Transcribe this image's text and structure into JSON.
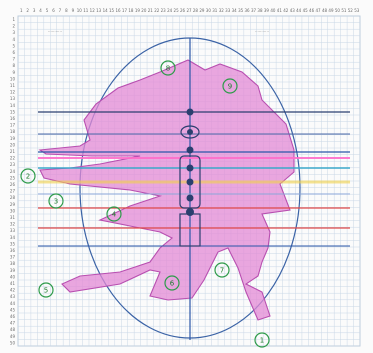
{
  "header": {
    "left_note": "...........",
    "right_note": "..........."
  },
  "column_labels": [
    "1",
    "2",
    "3",
    "4",
    "5",
    "6",
    "7",
    "8",
    "9",
    "10",
    "11",
    "12",
    "13",
    "14",
    "15",
    "16",
    "17",
    "18",
    "19",
    "20",
    "21",
    "22",
    "23",
    "24",
    "25",
    "26",
    "27",
    "28",
    "29",
    "30",
    "31",
    "32",
    "33",
    "34",
    "35",
    "36",
    "37",
    "38",
    "39",
    "40",
    "41",
    "42",
    "43",
    "44",
    "45",
    "46",
    "47",
    "48",
    "49",
    "50",
    "51",
    "52",
    "53"
  ],
  "row_labels": [
    "1",
    "2",
    "3",
    "4",
    "5",
    "6",
    "7",
    "8",
    "9",
    "10",
    "11",
    "12",
    "13",
    "14",
    "15",
    "16",
    "17",
    "18",
    "19",
    "20",
    "21",
    "22",
    "23",
    "24",
    "25",
    "26",
    "27",
    "28",
    "29",
    "30",
    "31",
    "32",
    "33",
    "34",
    "35",
    "36",
    "37",
    "38",
    "39",
    "40",
    "41",
    "42",
    "43",
    "44",
    "45",
    "46",
    "47",
    "48",
    "49",
    "50"
  ],
  "regions": [
    {
      "id": "1",
      "label": "1"
    },
    {
      "id": "2",
      "label": "2"
    },
    {
      "id": "3",
      "label": "3"
    },
    {
      "id": "4",
      "label": "4"
    },
    {
      "id": "5",
      "label": "5"
    },
    {
      "id": "6",
      "label": "6"
    },
    {
      "id": "7",
      "label": "7"
    },
    {
      "id": "8",
      "label": "8"
    },
    {
      "id": "9",
      "label": "9"
    }
  ],
  "colors": {
    "paper": "#fbfbfb",
    "grid": "#c9d7e6",
    "ellipse": "#3b63a6",
    "fill": "#e38ad6",
    "outline": "#b84fb0",
    "marker_green": "#2e9b4a",
    "line_red": "#e04a4a",
    "line_blue": "#2b57a8",
    "line_cyan": "#3aa8c9",
    "line_pink": "#ff6ecb",
    "line_yellow": "#f1d24a"
  }
}
